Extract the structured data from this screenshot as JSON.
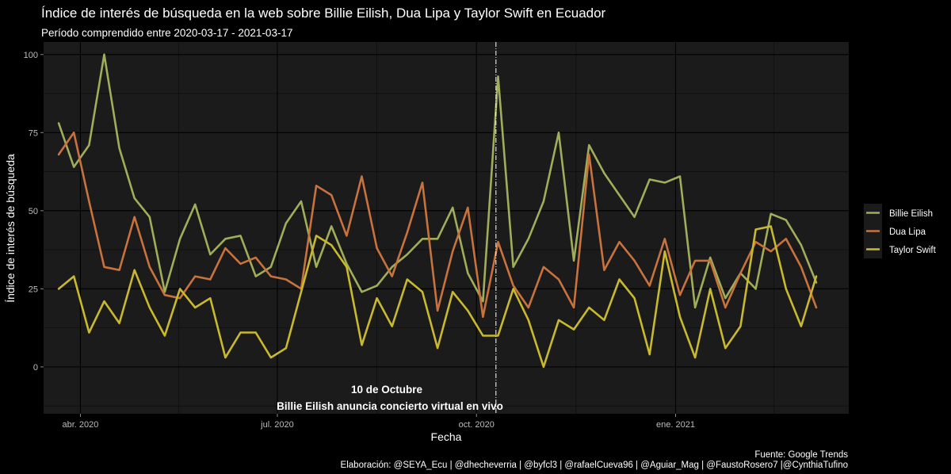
{
  "chart_data": {
    "type": "line",
    "title": "Índice de interés de búsqueda en la web sobre Billie Eilish, Dua Lipa y Taylor Swift  en Ecuador",
    "subtitle": "Período comprendido entre 2020-03-17 - 2021-03-17",
    "xlabel": "Fecha",
    "ylabel": "Índice de interés de búsqueda",
    "x_start": "2020-03-22",
    "x_step_days": 7,
    "x_ticks": [
      {
        "date": "2020-04-01",
        "label": "abr. 2020"
      },
      {
        "date": "2020-07-01",
        "label": "jul. 2020"
      },
      {
        "date": "2020-10-01",
        "label": "oct. 2020"
      },
      {
        "date": "2021-01-01",
        "label": "ene. 2021"
      }
    ],
    "xlim": [
      "2020-03-15",
      "2021-03-22"
    ],
    "ylim": [
      -15,
      104
    ],
    "y_ticks": [
      0,
      25,
      50,
      75,
      100
    ],
    "grid": true,
    "legend_position": "right",
    "series": [
      {
        "name": "Billie Eilish",
        "color": "#a0ad5a",
        "values": [
          78,
          64,
          71,
          100,
          70,
          54,
          48,
          24,
          41,
          52,
          36,
          41,
          42,
          29,
          32,
          46,
          53,
          32,
          45,
          33,
          24,
          26,
          32,
          36,
          41,
          41,
          51,
          30,
          21,
          93,
          32,
          41,
          53,
          75,
          34,
          71,
          62,
          55,
          48,
          60,
          59,
          61,
          19,
          35,
          22,
          30,
          25,
          49,
          47,
          39,
          27
        ]
      },
      {
        "name": "Dua Lipa",
        "color": "#c8723d",
        "values": [
          68,
          75,
          53,
          32,
          31,
          48,
          32,
          23,
          22,
          29,
          28,
          38,
          33,
          35,
          29,
          28,
          25,
          58,
          55,
          42,
          61,
          38,
          29,
          43,
          59,
          18,
          37,
          51,
          16,
          40,
          26,
          19,
          32,
          28,
          19,
          68,
          31,
          40,
          34,
          26,
          41,
          23,
          34,
          34,
          19,
          30,
          40,
          37,
          41,
          32,
          19
        ]
      },
      {
        "name": "Taylor Swift",
        "color": "#c9b92e",
        "values": [
          25,
          29,
          11,
          21,
          14,
          31,
          19,
          10,
          25,
          19,
          22,
          3,
          11,
          11,
          3,
          6,
          24,
          42,
          39,
          32,
          7,
          22,
          13,
          28,
          24,
          6,
          24,
          18,
          10,
          10,
          25,
          15,
          0,
          15,
          12,
          19,
          15,
          28,
          22,
          4,
          37,
          16,
          3,
          25,
          6,
          13,
          44,
          45,
          25,
          13,
          29
        ]
      }
    ],
    "event_line": {
      "date": "2020-10-10",
      "label_line1": "10 de Octubre",
      "label_line2": "Billie Eilish anuncia concierto virtual en vivo"
    },
    "caption_line1": "Fuente: Google Trends",
    "caption_line2": "Elaboración: @SEYA_Ecu | @dhecheverria | @byfcl3 | @rafaelCueva96 | @Aguiar_Mag | @FaustoRosero7 |@CynthiaTufino"
  }
}
